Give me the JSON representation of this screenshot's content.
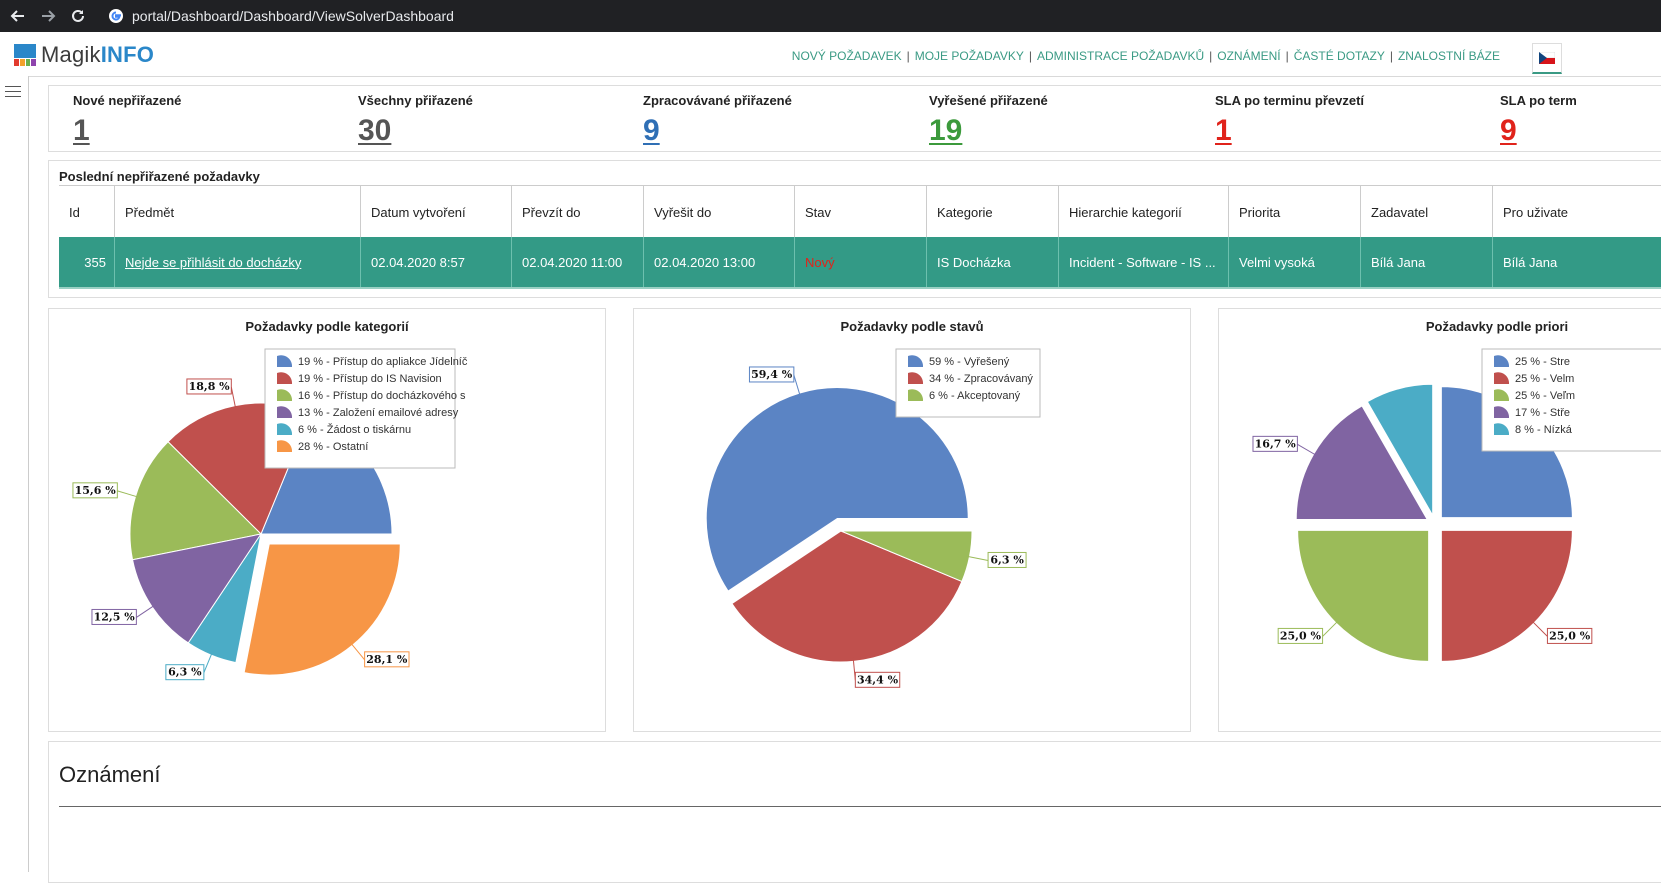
{
  "browser": {
    "url": "portal/Dashboard/Dashboard/ViewSolverDashboard"
  },
  "app": {
    "logo_prefix": "Magik",
    "logo_suffix": "INFO"
  },
  "top_nav": [
    "NOVÝ POŽADAVEK",
    "MOJE POŽADAVKY",
    "ADMINISTRACE POŽADAVKŮ",
    "OZNÁMENÍ",
    "ČASTÉ DOTAZY",
    "ZNALOSTNÍ BÁZE"
  ],
  "stats": [
    {
      "label": "Nové nepřiřazené",
      "value": "1",
      "color": "#555555"
    },
    {
      "label": "Všechny přiřazené",
      "value": "30",
      "color": "#555555"
    },
    {
      "label": "Zpracovávané přiřazené",
      "value": "9",
      "color": "#2f6fb5"
    },
    {
      "label": "Vyřešené přiřazené",
      "value": "19",
      "color": "#3c9a3c"
    },
    {
      "label": "SLA po terminu převzetí",
      "value": "1",
      "color": "#e0231b"
    },
    {
      "label": "SLA po term",
      "value": "9",
      "color": "#e0231b"
    }
  ],
  "table": {
    "title": "Poslední nepřiřazené požadavky",
    "columns": [
      "Id",
      "Předmět",
      "Datum vytvoření",
      "Převzít do",
      "Vyřešit do",
      "Stav",
      "Kategorie",
      "Hierarchie kategorií",
      "Priorita",
      "Zadavatel",
      "Pro uživate"
    ],
    "rows": [
      [
        "355",
        "Nejde se přihlásit do docházky",
        "02.04.2020 8:57",
        "02.04.2020 11:00",
        "02.04.2020 13:00",
        "Nový",
        "IS Docházka",
        "Incident - Software - IS ...",
        "Velmi vysoká",
        "Bílá Jana",
        "Bílá Jana"
      ]
    ]
  },
  "chart_data": [
    {
      "type": "pie",
      "title": "Požadavky podle kategorií",
      "legend_position": "top-right",
      "legend": [
        "19 % - Přístup do apliakce Jídelníč",
        "19 % - Přístup do IS Navision",
        "16 % - Přístup do docházkového s",
        "13 % - Založení emailové adresy",
        "6 % - Žádost o tiskárnu",
        "28 % - Ostatní"
      ],
      "values": [
        18.8,
        18.8,
        15.6,
        12.5,
        6.3,
        28.1
      ],
      "data_labels": [
        "",
        "18,8 %",
        "15,6 %",
        "12,5 %",
        "6,3 %",
        "28,1 %"
      ],
      "colors": [
        "#5b84c4",
        "#c0504d",
        "#9bbb59",
        "#8064a2",
        "#4bacc6",
        "#f79646"
      ],
      "exploded": [
        false,
        false,
        false,
        false,
        false,
        true
      ]
    },
    {
      "type": "pie",
      "title": "Požadavky podle stavů",
      "legend_position": "top-right",
      "legend": [
        "59 % - Vyřešený",
        "34 % - Zpracovávaný",
        "6 % - Akceptovaný"
      ],
      "values": [
        59.4,
        34.4,
        6.3
      ],
      "data_labels": [
        "59,4 %",
        "34,4 %",
        "6,3 %"
      ],
      "colors": [
        "#5b84c4",
        "#c0504d",
        "#9bbb59"
      ],
      "exploded": [
        true,
        false,
        false
      ]
    },
    {
      "type": "pie",
      "title": "Požadavky podle priori",
      "legend_position": "top-right",
      "legend": [
        "25 % - Stre",
        "25 % - Velm",
        "25 % - Veľm",
        "17 % - Stře",
        "8 % - Nízká"
      ],
      "values": [
        25.0,
        25.0,
        25.0,
        16.7,
        8.3
      ],
      "data_labels": [
        "",
        "25,0 %",
        "25,0 %",
        "16,7 %",
        ""
      ],
      "colors": [
        "#5b84c4",
        "#c0504d",
        "#9bbb59",
        "#8064a2",
        "#4bacc6"
      ],
      "exploded": [
        true,
        true,
        true,
        true,
        true
      ]
    }
  ],
  "announcements": {
    "title": "Oznámení"
  }
}
